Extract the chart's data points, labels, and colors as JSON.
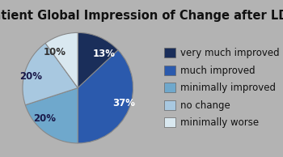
{
  "title": "Patient Global Impression of Change after LDN",
  "slices": [
    13,
    37,
    20,
    20,
    10
  ],
  "labels": [
    "13%",
    "37%",
    "20%",
    "20%",
    "10%"
  ],
  "legend_labels": [
    "very much improved",
    "much improved",
    "minimally improved",
    "no change",
    "minimally worse"
  ],
  "colors": [
    "#1a2e5a",
    "#2b5aad",
    "#6fa8cc",
    "#a8c8e0",
    "#d9e8f0"
  ],
  "background_color": "#b3b3b3",
  "title_fontsize": 10.5,
  "label_fontsize": 8.5,
  "legend_fontsize": 8.5,
  "startangle": 90
}
